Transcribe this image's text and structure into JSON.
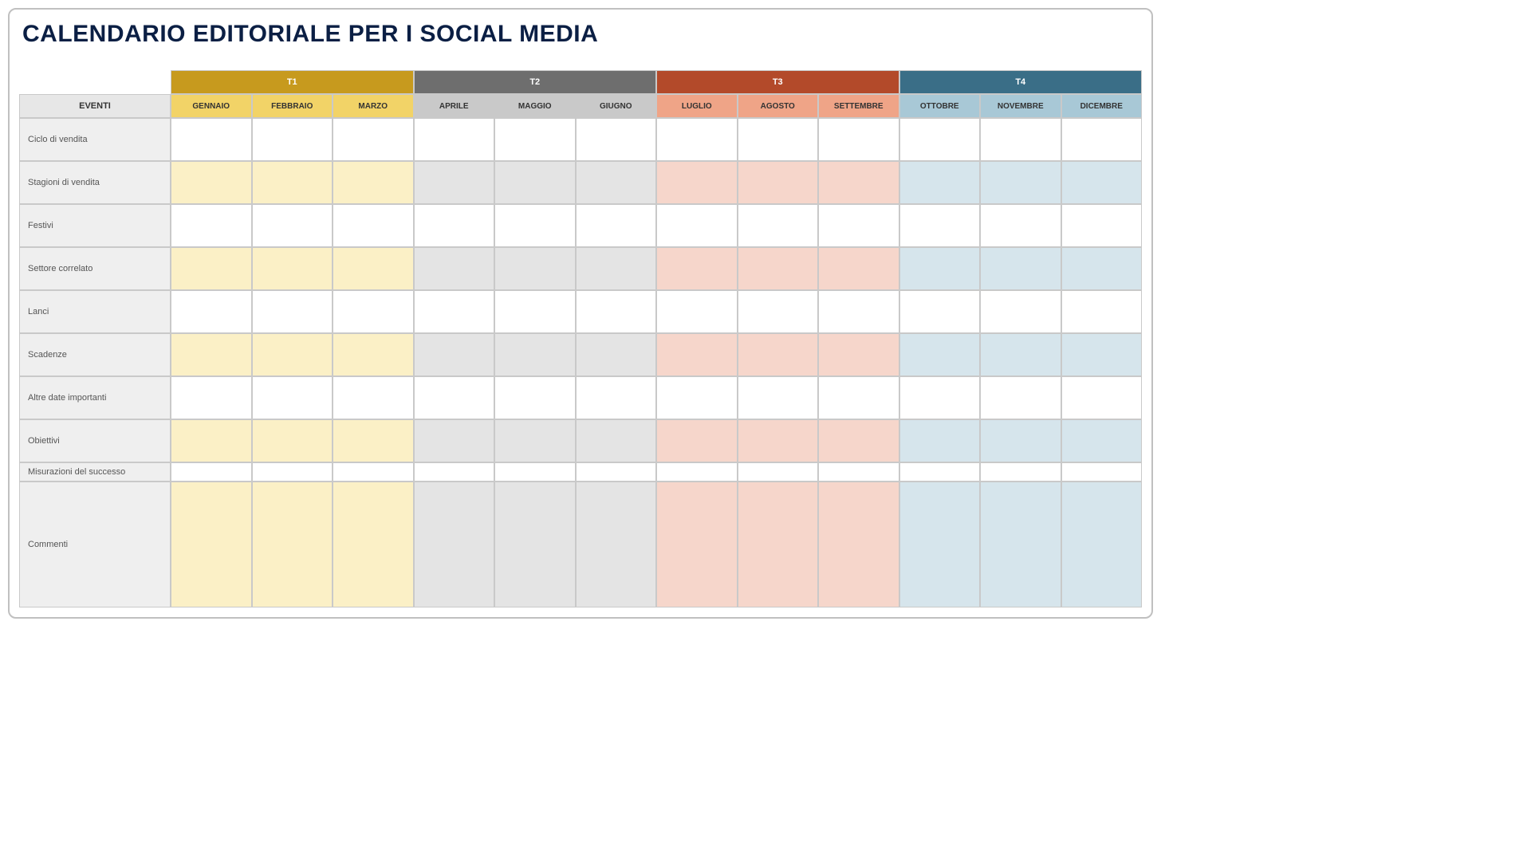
{
  "title": "CALENDARIO EDITORIALE PER I SOCIAL MEDIA",
  "header": {
    "eventi": "EVENTI",
    "quarters": [
      {
        "label": "T1",
        "header_color": "#c79a1e",
        "month_color": "#f2d367",
        "tint_color": "#fbf0c6"
      },
      {
        "label": "T2",
        "header_color": "#6e6e6e",
        "month_color": "#c9c9c9",
        "tint_color": "#e4e4e4"
      },
      {
        "label": "T3",
        "header_color": "#b34a2a",
        "month_color": "#efa487",
        "tint_color": "#f6d6cb"
      },
      {
        "label": "T4",
        "header_color": "#3a6e87",
        "month_color": "#a8c8d6",
        "tint_color": "#d6e5ec"
      }
    ],
    "months": [
      "GENNAIO",
      "FEBBRAIO",
      "MARZO",
      "APRILE",
      "MAGGIO",
      "GIUGNO",
      "LUGLIO",
      "AGOSTO",
      "SETTEMBRE",
      "OTTOBRE",
      "NOVEMBRE",
      "DICEMBRE"
    ]
  },
  "rows": [
    {
      "label": "Ciclo di vendita",
      "tinted": false,
      "height": "normal"
    },
    {
      "label": "Stagioni di vendita",
      "tinted": true,
      "height": "normal"
    },
    {
      "label": "Festivi",
      "tinted": false,
      "height": "normal"
    },
    {
      "label": "Settore correlato",
      "tinted": true,
      "height": "normal"
    },
    {
      "label": "Lanci",
      "tinted": false,
      "height": "normal"
    },
    {
      "label": "Scadenze",
      "tinted": true,
      "height": "normal"
    },
    {
      "label": "Altre date importanti",
      "tinted": false,
      "height": "normal"
    },
    {
      "label": "Obiettivi",
      "tinted": true,
      "height": "normal"
    },
    {
      "label": "Misurazioni del successo",
      "tinted": false,
      "height": "short"
    },
    {
      "label": "Commenti",
      "tinted": true,
      "height": "tall"
    }
  ],
  "layout": {
    "label_col_bg": "#efefef",
    "eventi_header_bg": "#e7e7e7",
    "border_color": "#c9c9c9",
    "title_color": "#0b1f44"
  }
}
